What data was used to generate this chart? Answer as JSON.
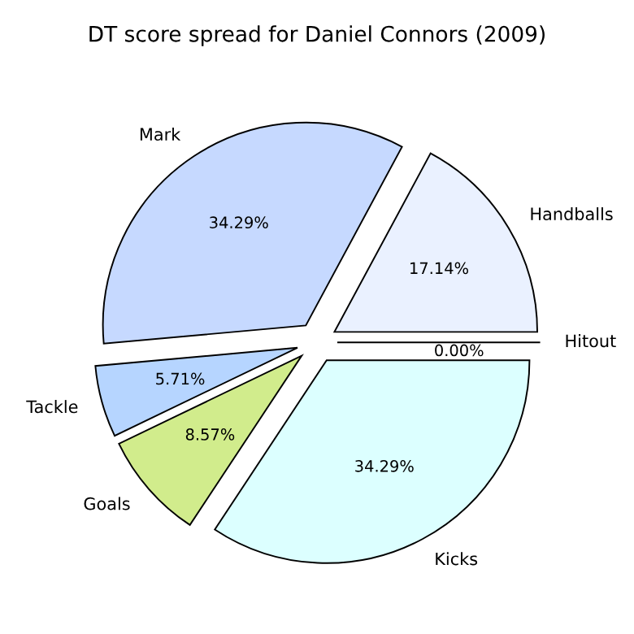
{
  "chart_data": {
    "type": "pie",
    "title": "DT score spread for Daniel Connors (2009)",
    "categories": [
      "Handballs",
      "Mark",
      "Tackle",
      "Goals",
      "Kicks",
      "Hitout"
    ],
    "values": [
      17.14,
      34.29,
      5.71,
      8.57,
      34.29,
      0.0
    ],
    "value_labels": [
      "17.14%",
      "34.29%",
      "5.71%",
      "8.57%",
      "34.29%",
      "0.00%"
    ],
    "colors": [
      "#eaf1ff",
      "#c6d9ff",
      "#b6d5ff",
      "#d1ec8c",
      "#dcffff",
      "#f5f5ff"
    ],
    "legend": false
  }
}
